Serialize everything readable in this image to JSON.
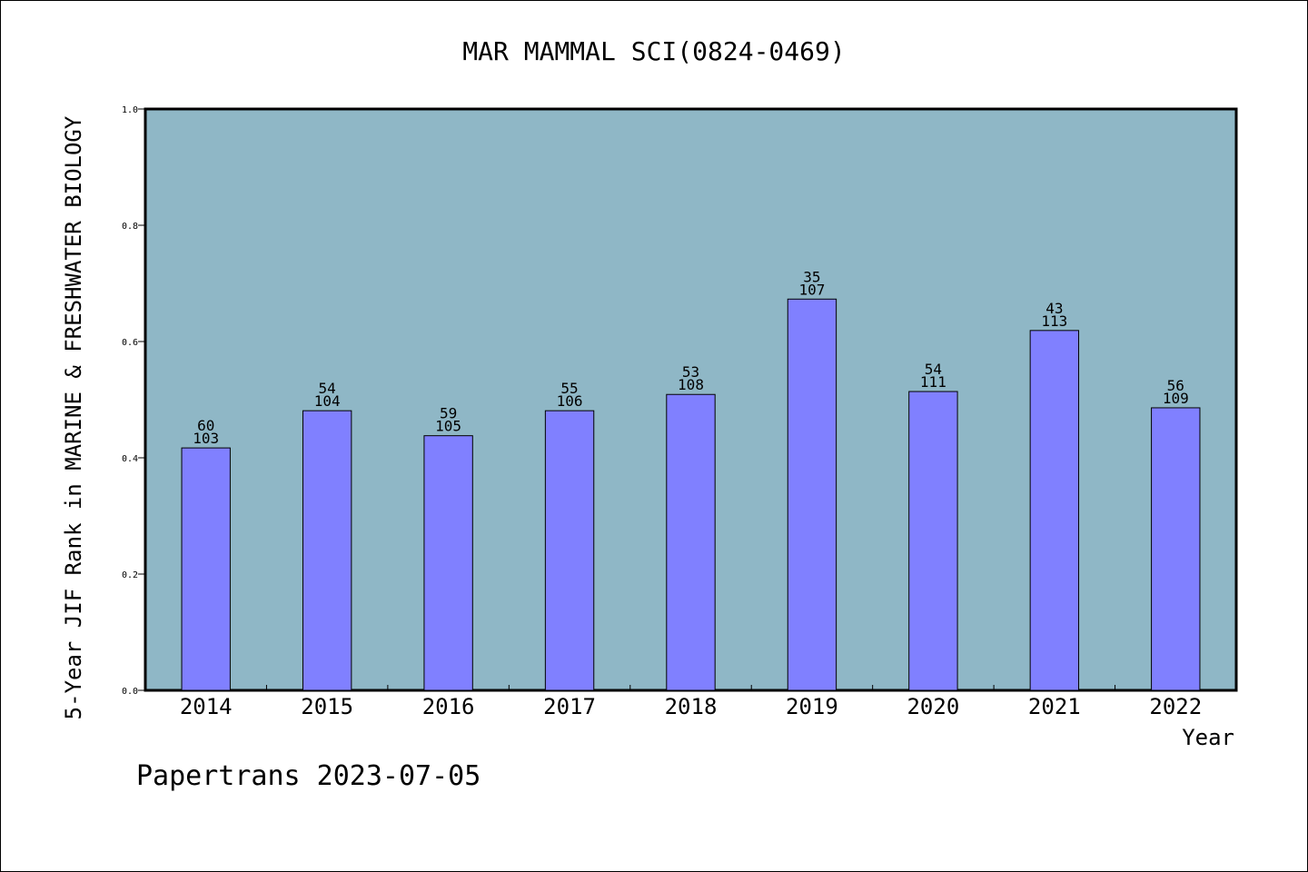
{
  "chart_data": {
    "type": "bar",
    "title": "MAR MAMMAL SCI(0824-0469)",
    "xlabel": "Year",
    "ylabel": "5-Year JIF Rank in MARINE & FRESHWATER BIOLOGY",
    "categories": [
      "2014",
      "2015",
      "2016",
      "2017",
      "2018",
      "2019",
      "2020",
      "2021",
      "2022"
    ],
    "values": [
      0.417,
      0.481,
      0.438,
      0.481,
      0.509,
      0.673,
      0.514,
      0.619,
      0.486
    ],
    "rank": [
      "60",
      "54",
      "59",
      "55",
      "53",
      "35",
      "54",
      "43",
      "56"
    ],
    "total": [
      "103",
      "104",
      "105",
      "106",
      "108",
      "107",
      "111",
      "113",
      "109"
    ],
    "ylim": [
      0,
      1.0
    ],
    "yticks": [
      "0.0",
      "0.2",
      "0.4",
      "0.6",
      "0.8",
      "1.0"
    ],
    "grid": false,
    "colors": {
      "plot_bg": "#8fb7c6",
      "bar": "#8080ff"
    }
  },
  "footer": {
    "text": "Papertrans 2023-07-05"
  }
}
